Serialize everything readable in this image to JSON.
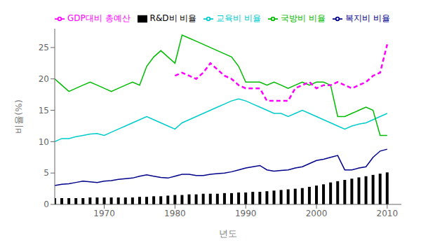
{
  "chart_data": {
    "type": "line",
    "xlabel": "년도",
    "ylabel": "비율(%)",
    "x": [
      1963,
      1964,
      1965,
      1966,
      1967,
      1968,
      1969,
      1970,
      1971,
      1972,
      1973,
      1974,
      1975,
      1976,
      1977,
      1978,
      1979,
      1980,
      1981,
      1982,
      1983,
      1984,
      1985,
      1986,
      1987,
      1988,
      1989,
      1990,
      1991,
      1992,
      1993,
      1994,
      1995,
      1996,
      1997,
      1998,
      1999,
      2000,
      2001,
      2002,
      2003,
      2004,
      2005,
      2006,
      2007,
      2008,
      2009,
      2010
    ],
    "series": [
      {
        "name": "R&D비 비율",
        "type": "bar",
        "color": "#000000",
        "values": [
          1.0,
          1.0,
          1.0,
          1.0,
          1.0,
          1.1,
          1.1,
          1.1,
          1.1,
          1.1,
          1.1,
          1.1,
          1.2,
          1.2,
          1.3,
          1.3,
          1.4,
          1.5,
          1.5,
          1.6,
          1.6,
          1.7,
          1.7,
          1.7,
          1.8,
          1.8,
          1.9,
          1.9,
          2.0,
          2.0,
          2.1,
          2.2,
          2.3,
          2.4,
          2.5,
          2.6,
          2.8,
          3.0,
          3.2,
          3.5,
          3.7,
          3.9,
          4.1,
          4.3,
          4.5,
          4.7,
          4.9,
          5.1
        ]
      },
      {
        "name": "복지비 비율",
        "type": "line",
        "color": "#00008B",
        "line_style": "solid",
        "values": [
          3.0,
          3.2,
          3.3,
          3.5,
          3.7,
          3.6,
          3.5,
          3.7,
          3.8,
          4.0,
          4.1,
          4.2,
          4.5,
          4.7,
          4.5,
          4.3,
          4.2,
          4.5,
          4.8,
          4.8,
          4.6,
          4.6,
          4.8,
          4.9,
          5.0,
          5.2,
          5.5,
          5.8,
          6.0,
          6.2,
          5.5,
          5.3,
          5.4,
          5.5,
          5.8,
          6.0,
          6.5,
          7.0,
          7.2,
          7.5,
          7.8,
          5.5,
          5.5,
          5.8,
          6.0,
          7.5,
          8.5,
          8.8
        ]
      },
      {
        "name": "교육비 비율",
        "type": "line",
        "color": "#00CCCC",
        "line_style": "solid",
        "values": [
          10.0,
          10.5,
          10.5,
          10.8,
          11.0,
          11.2,
          11.3,
          11.0,
          11.5,
          12.0,
          12.5,
          13.0,
          13.5,
          14.0,
          13.5,
          13.0,
          12.5,
          12.0,
          13.0,
          13.5,
          14.0,
          14.5,
          15.0,
          15.5,
          16.0,
          16.5,
          16.8,
          16.5,
          16.0,
          15.5,
          15.0,
          14.5,
          14.5,
          14.0,
          14.5,
          15.0,
          14.5,
          14.0,
          13.5,
          13.0,
          12.5,
          12.0,
          12.5,
          12.8,
          13.0,
          13.5,
          14.0,
          14.5
        ]
      },
      {
        "name": "국방비 비율",
        "type": "line",
        "color": "#00BB00",
        "line_style": "solid",
        "values": [
          20.0,
          19.0,
          18.0,
          18.5,
          19.0,
          19.5,
          19.0,
          18.5,
          18.0,
          18.5,
          19.0,
          19.5,
          19.0,
          22.0,
          23.5,
          24.5,
          23.5,
          22.5,
          27.0,
          26.5,
          26.0,
          25.5,
          25.0,
          24.5,
          24.0,
          23.5,
          22.0,
          19.5,
          19.5,
          19.5,
          19.0,
          19.5,
          19.0,
          18.5,
          19.0,
          19.5,
          19.0,
          19.5,
          19.5,
          19.0,
          14.0,
          14.0,
          14.5,
          15.0,
          15.5,
          15.0,
          11.0,
          11.0
        ]
      },
      {
        "name": "GDP대비 총예산",
        "type": "line",
        "color": "#FF00FF",
        "line_style": "dashed",
        "values": [
          null,
          null,
          null,
          null,
          null,
          null,
          null,
          null,
          null,
          null,
          null,
          null,
          null,
          null,
          null,
          null,
          null,
          20.5,
          21.0,
          20.5,
          20.0,
          21.0,
          22.5,
          21.5,
          20.5,
          20.0,
          19.0,
          18.5,
          18.5,
          18.5,
          16.5,
          16.5,
          16.5,
          16.5,
          18.5,
          19.0,
          19.5,
          18.5,
          19.0,
          19.0,
          19.5,
          19.0,
          18.5,
          19.0,
          19.5,
          20.5,
          21.0,
          25.5
        ]
      }
    ],
    "xlim": [
      1963,
      2012
    ],
    "xticks": [
      1970,
      1980,
      1990,
      2000,
      2010
    ],
    "ylim": [
      0,
      28
    ],
    "yticks": [
      0,
      5,
      10,
      15,
      20,
      25
    ],
    "grid": false,
    "legend": "upper left"
  }
}
